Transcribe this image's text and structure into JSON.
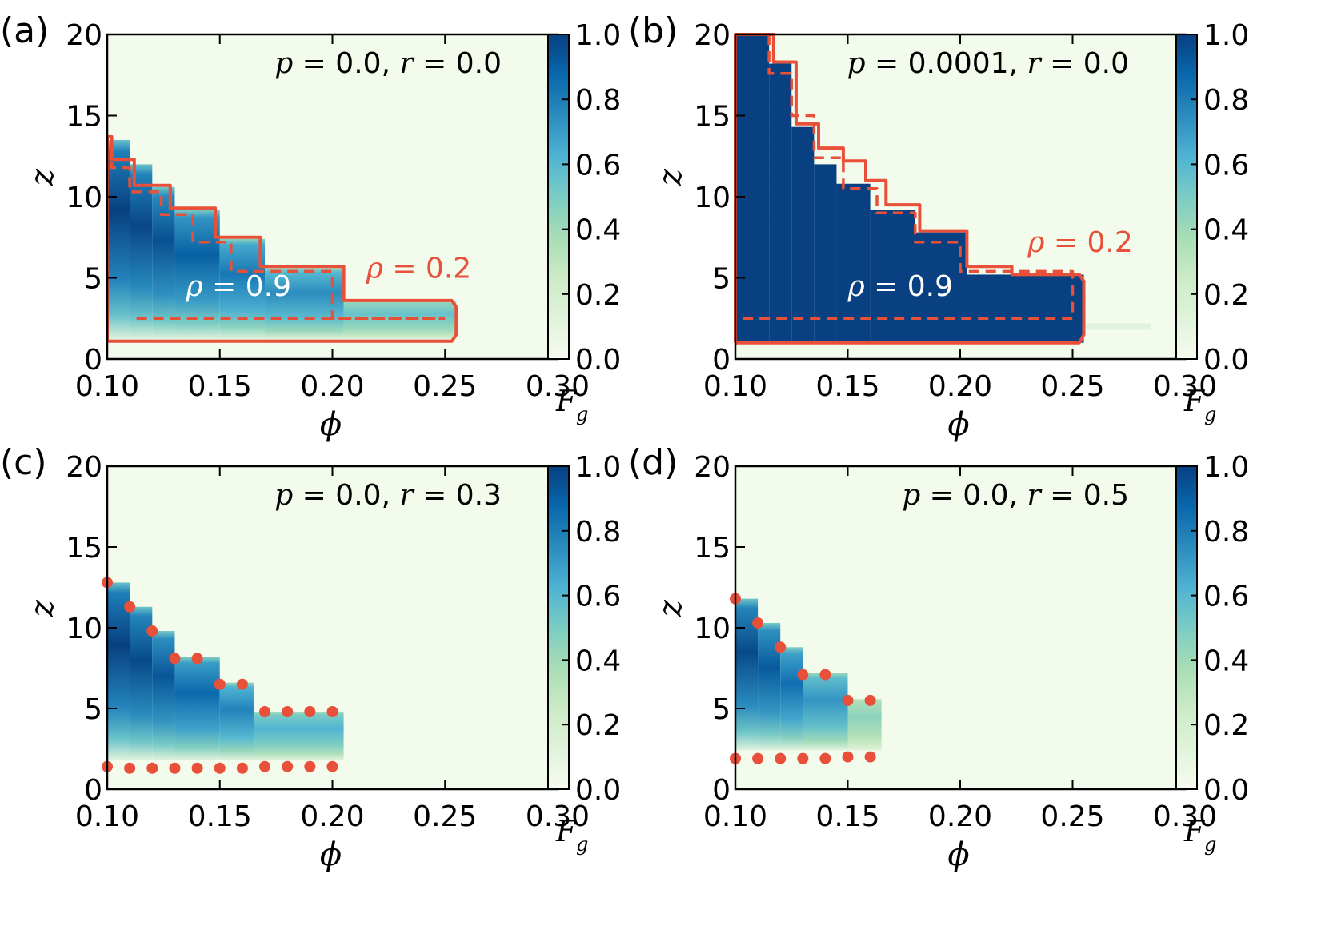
{
  "figure": {
    "colors": {
      "cmap": [
        "#f7fcf0",
        "#e0f3db",
        "#ccebc5",
        "#a8ddb5",
        "#7bccc4",
        "#4eb3d3",
        "#2b8cbe",
        "#0868ac",
        "#084081"
      ],
      "contour": "#e8503a",
      "axis": "#000000",
      "background_low": "#f7fcf0"
    },
    "panels": [
      {
        "label": "(a)",
        "annotation": "p = 0.0, r = 0.0",
        "annotation_parts": {
          "p_sym": "p",
          "p_val": "0.0",
          "r_sym": "r",
          "r_val": "0.0"
        },
        "rho_labels": [
          {
            "sym": "ρ",
            "text": "= 0.9",
            "color": "white",
            "at": [
              0.135,
              3.9
            ]
          },
          {
            "sym": "ρ",
            "text": "= 0.2",
            "color": "contour",
            "at": [
              0.215,
              5.0
            ]
          }
        ]
      },
      {
        "label": "(b)",
        "annotation": "p = 0.0001, r = 0.0",
        "annotation_parts": {
          "p_sym": "p",
          "p_val": "0.0001",
          "r_sym": "r",
          "r_val": "0.0"
        },
        "rho_labels": [
          {
            "sym": "ρ",
            "text": "= 0.9",
            "color": "white",
            "at": [
              0.15,
              3.9
            ]
          },
          {
            "sym": "ρ",
            "text": "= 0.2",
            "color": "contour",
            "at": [
              0.23,
              6.6
            ]
          }
        ]
      },
      {
        "label": "(c)",
        "annotation": "p = 0.0, r = 0.3",
        "annotation_parts": {
          "p_sym": "p",
          "p_val": "0.0",
          "r_sym": "r",
          "r_val": "0.3"
        },
        "rho_labels": []
      },
      {
        "label": "(d)",
        "annotation": "p = 0.0, r = 0.5",
        "annotation_parts": {
          "p_sym": "p",
          "p_val": "0.0",
          "r_sym": "r",
          "r_val": "0.5"
        },
        "rho_labels": []
      }
    ],
    "axes": {
      "xlabel": "ϕ",
      "ylabel": "z",
      "xticks": [
        "0.10",
        "0.15",
        "0.20",
        "0.25",
        "0.30"
      ],
      "yticks": [
        "0",
        "5",
        "10",
        "15",
        "20"
      ],
      "colorbar_label_main": "F",
      "colorbar_label_sub": "g",
      "colorbar_ticks": [
        "0.0",
        "0.2",
        "0.4",
        "0.6",
        "0.8",
        "1.0"
      ]
    }
  },
  "chart_data": [
    {
      "type": "heatmap",
      "title": "p = 0.0, r = 0.0",
      "xlabel": "ϕ",
      "ylabel": "z",
      "colorbar_label": "F_g",
      "xlim": [
        0.1,
        0.3
      ],
      "ylim": [
        0,
        20
      ],
      "clim": [
        0,
        1
      ],
      "columns": [
        {
          "x": [
            0.1,
            0.11
          ],
          "z": [
            1.2,
            13.5
          ],
          "peak": 1.0
        },
        {
          "x": [
            0.11,
            0.12
          ],
          "z": [
            1.2,
            12.0
          ],
          "peak": 0.98
        },
        {
          "x": [
            0.12,
            0.13
          ],
          "z": [
            1.2,
            10.6
          ],
          "peak": 0.95
        },
        {
          "x": [
            0.13,
            0.15
          ],
          "z": [
            1.2,
            9.2
          ],
          "peak": 0.9
        },
        {
          "x": [
            0.15,
            0.17
          ],
          "z": [
            1.2,
            7.4
          ],
          "peak": 0.82
        },
        {
          "x": [
            0.17,
            0.205
          ],
          "z": [
            1.2,
            5.6
          ],
          "peak": 0.75
        },
        {
          "x": [
            0.205,
            0.255
          ],
          "z": [
            1.2,
            3.6
          ],
          "peak": 0.55
        }
      ],
      "contours": [
        {
          "level": 0.2,
          "style": "solid",
          "x": [
            0.1,
            0.1,
            0.102,
            0.102,
            0.112,
            0.112,
            0.128,
            0.128,
            0.148,
            0.148,
            0.168,
            0.168,
            0.205,
            0.205,
            0.253,
            0.255,
            0.255,
            0.253,
            0.1
          ],
          "z": [
            1.1,
            13.7,
            13.7,
            12.3,
            12.3,
            10.7,
            10.7,
            9.3,
            9.3,
            7.5,
            7.5,
            5.7,
            5.7,
            3.6,
            3.6,
            3.2,
            1.5,
            1.1,
            1.1
          ]
        },
        {
          "level": 0.9,
          "style": "dashed",
          "x": [
            0.102,
            0.102,
            0.11,
            0.11,
            0.124,
            0.124,
            0.138,
            0.138,
            0.155,
            0.155,
            0.2,
            0.2,
            0.25
          ],
          "z": [
            13.2,
            11.8,
            11.8,
            10.3,
            10.3,
            8.9,
            8.9,
            7.2,
            7.2,
            5.4,
            5.4,
            2.5,
            2.5
          ]
        },
        {
          "level": 0.9,
          "style": "dashed",
          "x": [
            0.113,
            0.25
          ],
          "z": [
            2.5,
            2.5
          ]
        }
      ],
      "labels": [
        {
          "text": "ρ = 0.9",
          "x": 0.135,
          "z": 3.9
        },
        {
          "text": "ρ = 0.2",
          "x": 0.215,
          "z": 5.0
        }
      ]
    },
    {
      "type": "heatmap",
      "title": "p = 0.0001, r = 0.0",
      "xlabel": "ϕ",
      "ylabel": "z",
      "colorbar_label": "F_g",
      "xlim": [
        0.1,
        0.3
      ],
      "ylim": [
        0,
        20
      ],
      "clim": [
        0,
        1
      ],
      "columns": [
        {
          "x": [
            0.1,
            0.115
          ],
          "z": [
            1.0,
            20.0
          ],
          "peak": 1.0
        },
        {
          "x": [
            0.115,
            0.125
          ],
          "z": [
            1.0,
            18.2
          ],
          "peak": 1.0
        },
        {
          "x": [
            0.125,
            0.135
          ],
          "z": [
            1.0,
            14.3
          ],
          "peak": 1.0
        },
        {
          "x": [
            0.135,
            0.145
          ],
          "z": [
            1.0,
            12.0
          ],
          "peak": 1.0
        },
        {
          "x": [
            0.145,
            0.16
          ],
          "z": [
            1.0,
            10.8
          ],
          "peak": 1.0
        },
        {
          "x": [
            0.16,
            0.18
          ],
          "z": [
            1.0,
            9.2
          ],
          "peak": 1.0
        },
        {
          "x": [
            0.18,
            0.203
          ],
          "z": [
            1.0,
            7.8
          ],
          "peak": 1.0
        },
        {
          "x": [
            0.203,
            0.255
          ],
          "z": [
            1.0,
            5.2
          ],
          "peak": 1.0
        }
      ],
      "contours": [
        {
          "level": 0.2,
          "style": "solid",
          "x": [
            0.1,
            0.1,
            0.117,
            0.117,
            0.127,
            0.127,
            0.137,
            0.137,
            0.148,
            0.148,
            0.158,
            0.158,
            0.167,
            0.167,
            0.182,
            0.182,
            0.203,
            0.203,
            0.223,
            0.223,
            0.253,
            0.255,
            0.255,
            0.253,
            0.1
          ],
          "z": [
            1.0,
            20.0,
            20.0,
            18.3,
            18.3,
            14.5,
            14.5,
            13.0,
            13.0,
            12.2,
            12.2,
            11.0,
            11.0,
            9.5,
            9.5,
            7.9,
            7.9,
            5.7,
            5.7,
            5.2,
            5.2,
            4.8,
            1.5,
            1.0,
            1.0
          ]
        },
        {
          "level": 0.9,
          "style": "dashed",
          "x": [
            0.115,
            0.115,
            0.125,
            0.125,
            0.135,
            0.135,
            0.148,
            0.148,
            0.163,
            0.163,
            0.18,
            0.18,
            0.2,
            0.2,
            0.25,
            0.25,
            0.1
          ],
          "z": [
            20.0,
            17.6,
            17.6,
            15.0,
            15.0,
            12.4,
            12.4,
            10.5,
            10.5,
            9.0,
            9.0,
            7.2,
            7.2,
            5.4,
            5.4,
            2.5,
            2.5
          ]
        }
      ],
      "extra_bands": [
        {
          "x": [
            0.255,
            0.285
          ],
          "z": [
            1.8,
            2.2
          ],
          "value": 0.12
        }
      ],
      "labels": [
        {
          "text": "ρ = 0.9",
          "x": 0.15,
          "z": 3.9
        },
        {
          "text": "ρ = 0.2",
          "x": 0.23,
          "z": 6.6
        }
      ]
    },
    {
      "type": "heatmap",
      "title": "p = 0.0, r = 0.3",
      "xlabel": "ϕ",
      "ylabel": "z",
      "colorbar_label": "F_g",
      "xlim": [
        0.1,
        0.3
      ],
      "ylim": [
        0,
        20
      ],
      "clim": [
        0,
        1
      ],
      "columns": [
        {
          "x": [
            0.1,
            0.11
          ],
          "z": [
            1.8,
            12.8
          ],
          "peak": 1.0
        },
        {
          "x": [
            0.11,
            0.12
          ],
          "z": [
            1.8,
            11.3
          ],
          "peak": 0.97
        },
        {
          "x": [
            0.12,
            0.13
          ],
          "z": [
            1.8,
            9.8
          ],
          "peak": 0.93
        },
        {
          "x": [
            0.13,
            0.15
          ],
          "z": [
            1.8,
            8.2
          ],
          "peak": 0.87
        },
        {
          "x": [
            0.15,
            0.165
          ],
          "z": [
            1.8,
            6.6
          ],
          "peak": 0.78
        },
        {
          "x": [
            0.165,
            0.205
          ],
          "z": [
            1.8,
            4.8
          ],
          "peak": 0.62
        }
      ],
      "markers": [
        {
          "x": 0.1,
          "z": 12.8
        },
        {
          "x": 0.11,
          "z": 11.3
        },
        {
          "x": 0.12,
          "z": 9.8
        },
        {
          "x": 0.13,
          "z": 8.1
        },
        {
          "x": 0.14,
          "z": 8.1
        },
        {
          "x": 0.15,
          "z": 6.5
        },
        {
          "x": 0.16,
          "z": 6.5
        },
        {
          "x": 0.17,
          "z": 4.8
        },
        {
          "x": 0.18,
          "z": 4.8
        },
        {
          "x": 0.19,
          "z": 4.8
        },
        {
          "x": 0.2,
          "z": 4.8
        },
        {
          "x": 0.1,
          "z": 1.4
        },
        {
          "x": 0.11,
          "z": 1.3
        },
        {
          "x": 0.12,
          "z": 1.3
        },
        {
          "x": 0.13,
          "z": 1.3
        },
        {
          "x": 0.14,
          "z": 1.3
        },
        {
          "x": 0.15,
          "z": 1.3
        },
        {
          "x": 0.16,
          "z": 1.3
        },
        {
          "x": 0.17,
          "z": 1.4
        },
        {
          "x": 0.18,
          "z": 1.4
        },
        {
          "x": 0.19,
          "z": 1.4
        },
        {
          "x": 0.2,
          "z": 1.4
        }
      ]
    },
    {
      "type": "heatmap",
      "title": "p = 0.0, r = 0.5",
      "xlabel": "ϕ",
      "ylabel": "z",
      "colorbar_label": "F_g",
      "xlim": [
        0.1,
        0.3
      ],
      "ylim": [
        0,
        20
      ],
      "clim": [
        0,
        1
      ],
      "columns": [
        {
          "x": [
            0.1,
            0.11
          ],
          "z": [
            2.4,
            11.8
          ],
          "peak": 0.97
        },
        {
          "x": [
            0.11,
            0.12
          ],
          "z": [
            2.4,
            10.3
          ],
          "peak": 0.92
        },
        {
          "x": [
            0.12,
            0.13
          ],
          "z": [
            2.4,
            8.8
          ],
          "peak": 0.85
        },
        {
          "x": [
            0.13,
            0.15
          ],
          "z": [
            2.4,
            7.2
          ],
          "peak": 0.72
        },
        {
          "x": [
            0.15,
            0.165
          ],
          "z": [
            2.4,
            5.6
          ],
          "peak": 0.45
        }
      ],
      "markers": [
        {
          "x": 0.1,
          "z": 11.8
        },
        {
          "x": 0.11,
          "z": 10.3
        },
        {
          "x": 0.12,
          "z": 8.8
        },
        {
          "x": 0.13,
          "z": 7.1
        },
        {
          "x": 0.14,
          "z": 7.1
        },
        {
          "x": 0.15,
          "z": 5.5
        },
        {
          "x": 0.16,
          "z": 5.5
        },
        {
          "x": 0.1,
          "z": 1.9
        },
        {
          "x": 0.11,
          "z": 1.9
        },
        {
          "x": 0.12,
          "z": 1.9
        },
        {
          "x": 0.13,
          "z": 1.9
        },
        {
          "x": 0.14,
          "z": 1.9
        },
        {
          "x": 0.15,
          "z": 2.0
        },
        {
          "x": 0.16,
          "z": 2.0
        }
      ]
    }
  ]
}
